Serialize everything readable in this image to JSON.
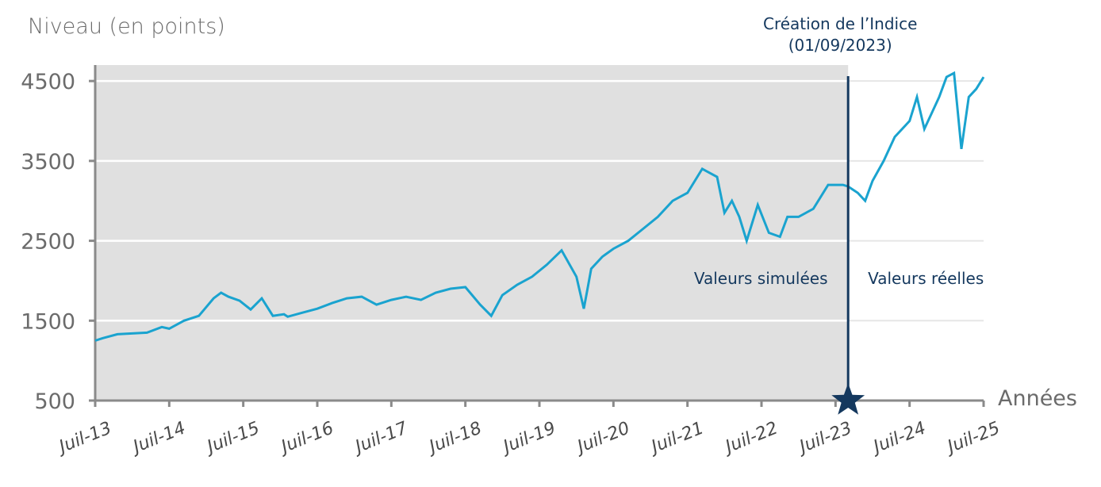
{
  "chart_data": {
    "type": "line",
    "ylabel": "Niveau (en points)",
    "xlabel": "Années",
    "ylim": [
      500,
      4700
    ],
    "yticks": [
      500,
      1500,
      2500,
      3500,
      4500
    ],
    "xticks": [
      "Juil-13",
      "Juil-14",
      "Juil-15",
      "Juil-16",
      "Juil-17",
      "Juil-18",
      "Juil-19",
      "Juil-20",
      "Juil-21",
      "Juil-22",
      "Juil-23",
      "Juil-24",
      "Juil-25"
    ],
    "x_range": [
      2013.5,
      2025.5
    ],
    "creation_annotation": {
      "line1": "Création de l’Indice",
      "line2": "(01/09/2023)",
      "x": 2023.67
    },
    "regions": {
      "simulated_label": "Valeurs simulées",
      "real_label": "Valeurs réelles"
    },
    "colors": {
      "line": "#1aa3cf",
      "shade": "#e0e0e0",
      "marker": "#14385e",
      "grid": "#ffffff",
      "axis": "#8a8a8a"
    },
    "series": [
      {
        "name": "Niveau",
        "x": [
          2013.5,
          2013.6,
          2013.8,
          2014.0,
          2014.2,
          2014.4,
          2014.5,
          2014.7,
          2014.9,
          2015.1,
          2015.2,
          2015.3,
          2015.45,
          2015.6,
          2015.75,
          2015.9,
          2016.05,
          2016.1,
          2016.3,
          2016.5,
          2016.7,
          2016.9,
          2017.1,
          2017.3,
          2017.5,
          2017.7,
          2017.9,
          2018.1,
          2018.3,
          2018.5,
          2018.7,
          2018.85,
          2019.0,
          2019.2,
          2019.4,
          2019.6,
          2019.8,
          2020.0,
          2020.1,
          2020.15,
          2020.2,
          2020.35,
          2020.5,
          2020.7,
          2020.9,
          2021.1,
          2021.3,
          2021.5,
          2021.7,
          2021.9,
          2022.0,
          2022.1,
          2022.2,
          2022.3,
          2022.45,
          2022.6,
          2022.75,
          2022.85,
          2023.0,
          2023.2,
          2023.4,
          2023.6,
          2023.67,
          2023.8,
          2023.9,
          2024.0,
          2024.15,
          2024.3,
          2024.5,
          2024.6,
          2024.7,
          2024.8,
          2024.9,
          2025.0,
          2025.1,
          2025.2,
          2025.3,
          2025.4,
          2025.5
        ],
        "values": [
          1250,
          1280,
          1330,
          1340,
          1350,
          1420,
          1400,
          1500,
          1560,
          1780,
          1850,
          1800,
          1750,
          1640,
          1780,
          1560,
          1580,
          1550,
          1600,
          1650,
          1720,
          1780,
          1800,
          1700,
          1760,
          1800,
          1760,
          1850,
          1900,
          1920,
          1700,
          1560,
          1820,
          1950,
          2050,
          2200,
          2380,
          2050,
          1650,
          1900,
          2150,
          2300,
          2400,
          2500,
          2650,
          2800,
          3000,
          3100,
          3400,
          3300,
          2850,
          3000,
          2800,
          2500,
          2950,
          2600,
          2550,
          2800,
          2800,
          2900,
          3200,
          3200,
          3180,
          3100,
          3000,
          3250,
          3500,
          3800,
          4000,
          4300,
          3900,
          4100,
          4300,
          4550,
          4600,
          3650,
          4300,
          4400,
          4550
        ]
      }
    ]
  }
}
